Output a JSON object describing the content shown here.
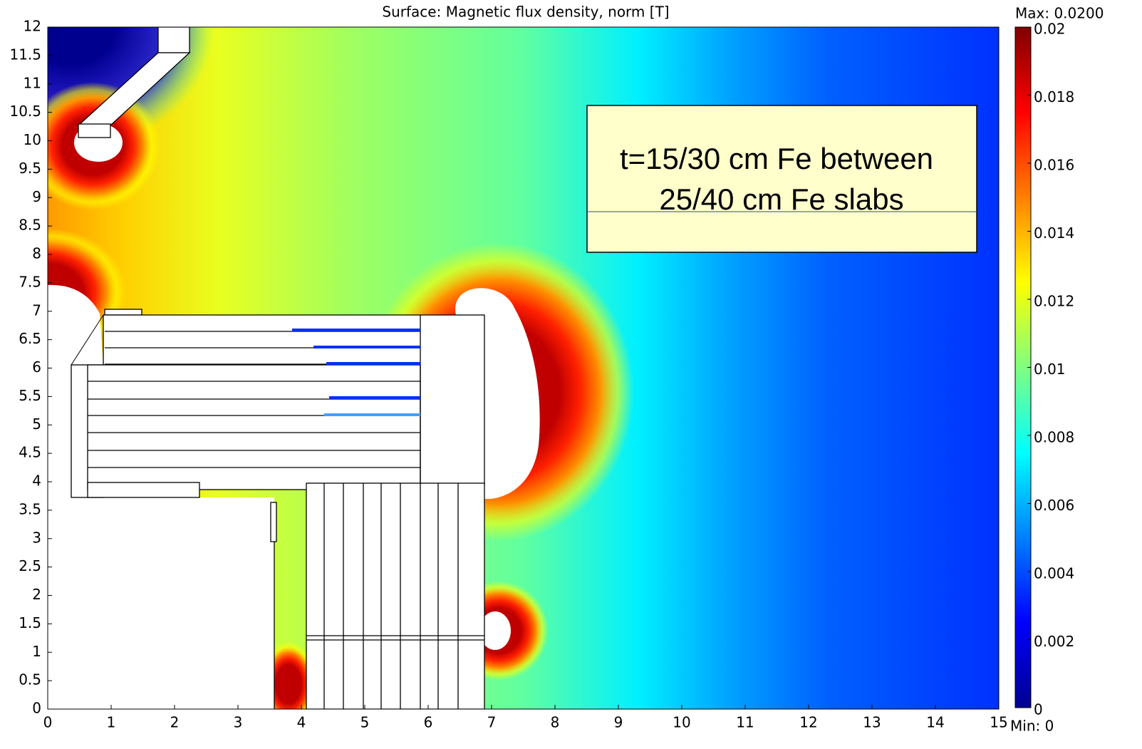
{
  "chart_data": {
    "type": "surface",
    "title": "Surface: Magnetic flux density, norm [T]",
    "xlim": [
      0,
      15
    ],
    "xticks": [
      0,
      1,
      2,
      3,
      4,
      5,
      6,
      7,
      8,
      9,
      10,
      11,
      12,
      13,
      14,
      15
    ],
    "ylim": [
      0,
      12
    ],
    "yticks": [
      0,
      0.5,
      1,
      1.5,
      2,
      2.5,
      3,
      3.5,
      4,
      4.5,
      5,
      5.5,
      6,
      6.5,
      7,
      7.5,
      8,
      8.5,
      9,
      9.5,
      10,
      10.5,
      11,
      11.5,
      12
    ],
    "colorbar": {
      "clim": [
        0,
        0.02
      ],
      "ticks": [
        0,
        0.002,
        0.004,
        0.006,
        0.008,
        0.01,
        0.012,
        0.014,
        0.016,
        0.018,
        0.02
      ],
      "max_label": "Max: 0.0200",
      "min_label": "Min: 0",
      "colormap": [
        "#00008f",
        "#0000ff",
        "#0080ff",
        "#00ffff",
        "#80ff80",
        "#ffff00",
        "#ff8000",
        "#ff0000",
        "#800000"
      ]
    },
    "annotation": [
      "t=15/30 cm Fe between",
      "25/40 cm Fe slabs"
    ]
  }
}
